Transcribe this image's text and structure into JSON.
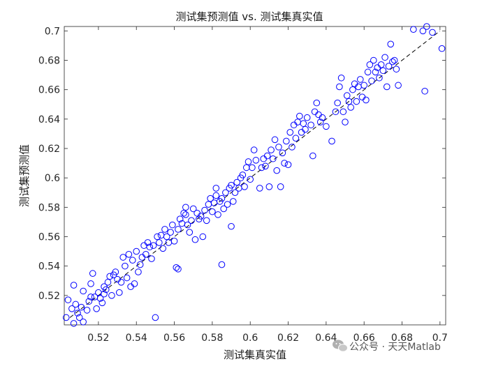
{
  "chart_data": {
    "type": "scatter",
    "title": "测试集预测值 vs. 测试集真实值",
    "xlabel": "测试集真实值",
    "ylabel": "测试集预测值",
    "xlim": [
      0.502,
      0.703
    ],
    "ylim": [
      0.5,
      0.703
    ],
    "xticks": [
      0.52,
      0.54,
      0.56,
      0.58,
      0.6,
      0.62,
      0.64,
      0.66,
      0.68,
      0.7
    ],
    "yticks": [
      0.52,
      0.54,
      0.56,
      0.58,
      0.6,
      0.62,
      0.64,
      0.66,
      0.68,
      0.7
    ],
    "xtick_labels": [
      "0.52",
      "0.54",
      "0.56",
      "0.58",
      "0.6",
      "0.62",
      "0.64",
      "0.66",
      "0.68",
      "0.7"
    ],
    "ytick_labels": [
      "0.52",
      "0.54",
      "0.56",
      "0.58",
      "0.6",
      "0.62",
      "0.64",
      "0.66",
      "0.68",
      "0.7"
    ],
    "grid": false,
    "marker": "open-circle",
    "marker_color": "#0000ff",
    "reference_line": {
      "style": "dashed",
      "color": "#000000",
      "from": [
        0.505,
        0.505
      ],
      "to": [
        0.7,
        0.7
      ]
    },
    "points": [
      [
        0.503,
        0.505
      ],
      [
        0.504,
        0.517
      ],
      [
        0.506,
        0.511
      ],
      [
        0.507,
        0.527
      ],
      [
        0.507,
        0.501
      ],
      [
        0.508,
        0.514
      ],
      [
        0.509,
        0.508
      ],
      [
        0.51,
        0.505
      ],
      [
        0.511,
        0.512
      ],
      [
        0.512,
        0.502
      ],
      [
        0.512,
        0.523
      ],
      [
        0.514,
        0.51
      ],
      [
        0.515,
        0.516
      ],
      [
        0.516,
        0.519
      ],
      [
        0.516,
        0.528
      ],
      [
        0.517,
        0.535
      ],
      [
        0.518,
        0.519
      ],
      [
        0.519,
        0.511
      ],
      [
        0.52,
        0.522
      ],
      [
        0.521,
        0.518
      ],
      [
        0.522,
        0.515
      ],
      [
        0.523,
        0.526
      ],
      [
        0.523,
        0.521
      ],
      [
        0.524,
        0.524
      ],
      [
        0.525,
        0.529
      ],
      [
        0.526,
        0.533
      ],
      [
        0.527,
        0.52
      ],
      [
        0.528,
        0.534
      ],
      [
        0.529,
        0.536
      ],
      [
        0.53,
        0.531
      ],
      [
        0.531,
        0.522
      ],
      [
        0.532,
        0.529
      ],
      [
        0.533,
        0.546
      ],
      [
        0.534,
        0.54
      ],
      [
        0.535,
        0.532
      ],
      [
        0.536,
        0.548
      ],
      [
        0.537,
        0.526
      ],
      [
        0.538,
        0.544
      ],
      [
        0.539,
        0.528
      ],
      [
        0.54,
        0.55
      ],
      [
        0.541,
        0.536
      ],
      [
        0.542,
        0.541
      ],
      [
        0.543,
        0.546
      ],
      [
        0.544,
        0.554
      ],
      [
        0.545,
        0.548
      ],
      [
        0.546,
        0.556
      ],
      [
        0.547,
        0.553
      ],
      [
        0.548,
        0.545
      ],
      [
        0.549,
        0.554
      ],
      [
        0.55,
        0.505
      ],
      [
        0.551,
        0.56
      ],
      [
        0.552,
        0.556
      ],
      [
        0.553,
        0.561
      ],
      [
        0.554,
        0.552
      ],
      [
        0.555,
        0.565
      ],
      [
        0.556,
        0.56
      ],
      [
        0.557,
        0.556
      ],
      [
        0.558,
        0.563
      ],
      [
        0.559,
        0.568
      ],
      [
        0.56,
        0.557
      ],
      [
        0.561,
        0.539
      ],
      [
        0.562,
        0.565
      ],
      [
        0.562,
        0.538
      ],
      [
        0.563,
        0.572
      ],
      [
        0.564,
        0.569
      ],
      [
        0.565,
        0.576
      ],
      [
        0.566,
        0.575
      ],
      [
        0.566,
        0.58
      ],
      [
        0.567,
        0.568
      ],
      [
        0.568,
        0.563
      ],
      [
        0.569,
        0.571
      ],
      [
        0.57,
        0.579
      ],
      [
        0.571,
        0.558
      ],
      [
        0.572,
        0.576
      ],
      [
        0.573,
        0.572
      ],
      [
        0.574,
        0.574
      ],
      [
        0.575,
        0.56
      ],
      [
        0.576,
        0.578
      ],
      [
        0.577,
        0.571
      ],
      [
        0.578,
        0.582
      ],
      [
        0.579,
        0.586
      ],
      [
        0.58,
        0.577
      ],
      [
        0.581,
        0.583
      ],
      [
        0.582,
        0.588
      ],
      [
        0.582,
        0.593
      ],
      [
        0.583,
        0.575
      ],
      [
        0.584,
        0.584
      ],
      [
        0.585,
        0.586
      ],
      [
        0.585,
        0.541
      ],
      [
        0.586,
        0.579
      ],
      [
        0.587,
        0.59
      ],
      [
        0.588,
        0.582
      ],
      [
        0.589,
        0.593
      ],
      [
        0.59,
        0.595
      ],
      [
        0.59,
        0.567
      ],
      [
        0.591,
        0.584
      ],
      [
        0.592,
        0.59
      ],
      [
        0.593,
        0.597
      ],
      [
        0.594,
        0.593
      ],
      [
        0.595,
        0.6
      ],
      [
        0.596,
        0.602
      ],
      [
        0.597,
        0.594
      ],
      [
        0.598,
        0.607
      ],
      [
        0.599,
        0.611
      ],
      [
        0.6,
        0.599
      ],
      [
        0.601,
        0.607
      ],
      [
        0.602,
        0.619
      ],
      [
        0.603,
        0.612
      ],
      [
        0.605,
        0.593
      ],
      [
        0.606,
        0.607
      ],
      [
        0.607,
        0.613
      ],
      [
        0.608,
        0.608
      ],
      [
        0.609,
        0.615
      ],
      [
        0.61,
        0.594
      ],
      [
        0.611,
        0.619
      ],
      [
        0.612,
        0.613
      ],
      [
        0.613,
        0.626
      ],
      [
        0.614,
        0.605
      ],
      [
        0.615,
        0.621
      ],
      [
        0.616,
        0.594
      ],
      [
        0.617,
        0.617
      ],
      [
        0.618,
        0.61
      ],
      [
        0.619,
        0.625
      ],
      [
        0.62,
        0.609
      ],
      [
        0.621,
        0.631
      ],
      [
        0.622,
        0.621
      ],
      [
        0.623,
        0.636
      ],
      [
        0.624,
        0.627
      ],
      [
        0.625,
        0.638
      ],
      [
        0.626,
        0.642
      ],
      [
        0.627,
        0.631
      ],
      [
        0.628,
        0.637
      ],
      [
        0.629,
        0.633
      ],
      [
        0.63,
        0.641
      ],
      [
        0.632,
        0.636
      ],
      [
        0.633,
        0.615
      ],
      [
        0.634,
        0.645
      ],
      [
        0.635,
        0.651
      ],
      [
        0.636,
        0.643
      ],
      [
        0.637,
        0.638
      ],
      [
        0.638,
        0.641
      ],
      [
        0.64,
        0.635
      ],
      [
        0.643,
        0.625
      ],
      [
        0.645,
        0.645
      ],
      [
        0.646,
        0.651
      ],
      [
        0.647,
        0.662
      ],
      [
        0.648,
        0.668
      ],
      [
        0.649,
        0.645
      ],
      [
        0.65,
        0.638
      ],
      [
        0.651,
        0.656
      ],
      [
        0.652,
        0.652
      ],
      [
        0.653,
        0.648
      ],
      [
        0.654,
        0.66
      ],
      [
        0.655,
        0.664
      ],
      [
        0.656,
        0.652
      ],
      [
        0.657,
        0.662
      ],
      [
        0.658,
        0.667
      ],
      [
        0.659,
        0.655
      ],
      [
        0.66,
        0.663
      ],
      [
        0.661,
        0.653
      ],
      [
        0.662,
        0.672
      ],
      [
        0.663,
        0.677
      ],
      [
        0.664,
        0.666
      ],
      [
        0.665,
        0.68
      ],
      [
        0.666,
        0.672
      ],
      [
        0.667,
        0.675
      ],
      [
        0.668,
        0.668
      ],
      [
        0.669,
        0.677
      ],
      [
        0.67,
        0.673
      ],
      [
        0.671,
        0.682
      ],
      [
        0.672,
        0.662
      ],
      [
        0.673,
        0.676
      ],
      [
        0.674,
        0.691
      ],
      [
        0.675,
        0.679
      ],
      [
        0.676,
        0.68
      ],
      [
        0.677,
        0.674
      ],
      [
        0.678,
        0.663
      ],
      [
        0.686,
        0.701
      ],
      [
        0.691,
        0.7
      ],
      [
        0.692,
        0.659
      ],
      [
        0.693,
        0.703
      ],
      [
        0.696,
        0.699
      ],
      [
        0.701,
        0.688
      ]
    ]
  },
  "watermark": {
    "text": "公众号 · 天天Matlab",
    "icon": "wechat-icon",
    "color": "#8a8a8a"
  }
}
